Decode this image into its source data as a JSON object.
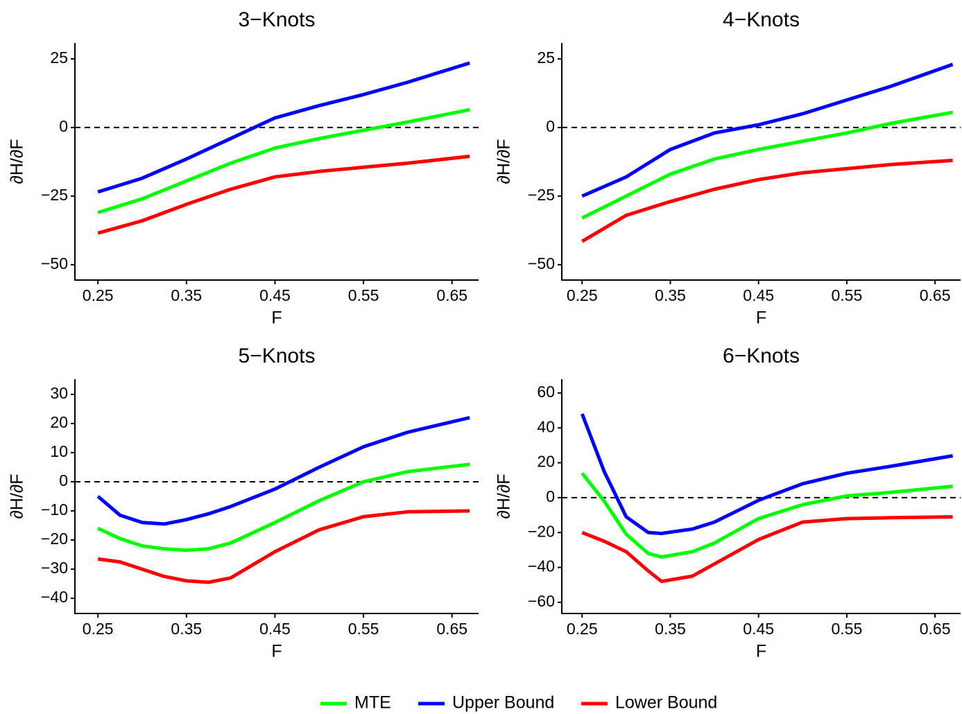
{
  "chart_data": [
    {
      "type": "line",
      "title": "3−Knots",
      "x_label": "F",
      "y_label": "∂H/∂F",
      "x": [
        0.25,
        0.3,
        0.35,
        0.4,
        0.45,
        0.5,
        0.55,
        0.6,
        0.67
      ],
      "series": [
        {
          "name": "MTE",
          "color": "#00ff00",
          "values": [
            -31,
            -26,
            -19.5,
            -13,
            -7.5,
            -4,
            -1,
            2,
            6.5
          ]
        },
        {
          "name": "Upper Bound",
          "color": "#0000ff",
          "values": [
            -23.5,
            -18.5,
            -11.5,
            -4,
            3.5,
            8,
            12,
            16.5,
            23.5
          ]
        },
        {
          "name": "Lower Bound",
          "color": "#ff0000",
          "values": [
            -38.5,
            -34,
            -28,
            -22.5,
            -18,
            -16,
            -14.5,
            -13,
            -10.5
          ]
        }
      ],
      "xlim": [
        0.224,
        0.68
      ],
      "xticks": [
        0.25,
        0.35,
        0.45,
        0.55,
        0.65
      ],
      "ylim": [
        -55.6,
        30.8
      ],
      "yticks": [
        {
          "value": -50,
          "label": "−50"
        },
        {
          "value": -25,
          "label": "−25"
        },
        0,
        25
      ],
      "hline": 0
    },
    {
      "type": "line",
      "title": "4−Knots",
      "x_label": "F",
      "y_label": "∂H/∂F",
      "x": [
        0.25,
        0.3,
        0.35,
        0.4,
        0.45,
        0.5,
        0.55,
        0.6,
        0.67
      ],
      "series": [
        {
          "color": "#00ff00",
          "values": [
            -33,
            -25,
            -17,
            -11.5,
            -8,
            -5,
            -2,
            1.5,
            5.5
          ]
        },
        {
          "color": "#0000ff",
          "values": [
            -25,
            -18,
            -8,
            -2,
            1,
            5,
            10,
            15,
            23
          ]
        },
        {
          "color": "#ff0000",
          "values": [
            -41.5,
            -32,
            -27,
            -22.5,
            -19,
            -16.5,
            -15,
            -13.5,
            -12
          ]
        }
      ],
      "xlim": [
        0.227,
        0.679
      ],
      "xticks": [
        0.25,
        0.35,
        0.45,
        0.55,
        0.65
      ],
      "ylim": [
        -55.6,
        30.8
      ],
      "yticks": [
        {
          "value": -50,
          "label": "−50"
        },
        {
          "value": -25,
          "label": "−25"
        },
        0,
        25
      ],
      "hline": 0
    },
    {
      "type": "line",
      "title": "5−Knots",
      "x_label": "F",
      "y_label": "∂H/∂F",
      "x": [
        0.25,
        0.275,
        0.3,
        0.325,
        0.35,
        0.375,
        0.4,
        0.45,
        0.5,
        0.55,
        0.6,
        0.67
      ],
      "series": [
        {
          "color": "#00ff00",
          "values": [
            -16,
            -19.5,
            -22,
            -23,
            -23.5,
            -23,
            -21,
            -14,
            -6.5,
            0,
            3.5,
            6
          ]
        },
        {
          "color": "#0000ff",
          "values": [
            -5,
            -11.5,
            -14,
            -14.5,
            -13,
            -11,
            -8.5,
            -2.5,
            5,
            12,
            17,
            22
          ]
        },
        {
          "color": "#ff0000",
          "values": [
            -26.5,
            -27.5,
            -30,
            -32.5,
            -34,
            -34.5,
            -33,
            -24,
            -16.5,
            -12,
            -10.3,
            -10
          ]
        }
      ],
      "xlim": [
        0.224,
        0.68
      ],
      "xticks": [
        0.25,
        0.35,
        0.45,
        0.55,
        0.65
      ],
      "ylim": [
        -45.2,
        35.2
      ],
      "yticks": [
        {
          "value": -40,
          "label": "−40"
        },
        {
          "value": -30,
          "label": "−30"
        },
        {
          "value": -20,
          "label": "−20"
        },
        {
          "value": -10,
          "label": "−10"
        },
        0,
        10,
        20,
        30
      ],
      "hline": 0
    },
    {
      "type": "line",
      "title": "6−Knots",
      "x_label": "F",
      "y_label": "∂H/∂F",
      "x": [
        0.25,
        0.275,
        0.3,
        0.325,
        0.34,
        0.375,
        0.4,
        0.45,
        0.5,
        0.55,
        0.6,
        0.67
      ],
      "series": [
        {
          "color": "#00ff00",
          "values": [
            14,
            -2,
            -21,
            -32,
            -34,
            -31,
            -26,
            -12,
            -4,
            1,
            3,
            6.5
          ]
        },
        {
          "color": "#0000ff",
          "values": [
            48,
            15,
            -11,
            -20,
            -20.5,
            -18,
            -14,
            -1.5,
            8,
            14,
            18,
            24
          ]
        },
        {
          "color": "#ff0000",
          "values": [
            -20,
            -25,
            -31,
            -42,
            -48,
            -45,
            -38,
            -24,
            -14,
            -12,
            -11.5,
            -11
          ]
        }
      ],
      "xlim": [
        0.227,
        0.679
      ],
      "xticks": [
        0.25,
        0.35,
        0.45,
        0.55,
        0.65
      ],
      "ylim": [
        -66.4,
        67.9
      ],
      "yticks": [
        {
          "value": -60,
          "label": "−60"
        },
        {
          "value": -40,
          "label": "−40"
        },
        {
          "value": -20,
          "label": "−20"
        },
        0,
        20,
        40,
        60
      ],
      "hline": 0
    }
  ]
}
